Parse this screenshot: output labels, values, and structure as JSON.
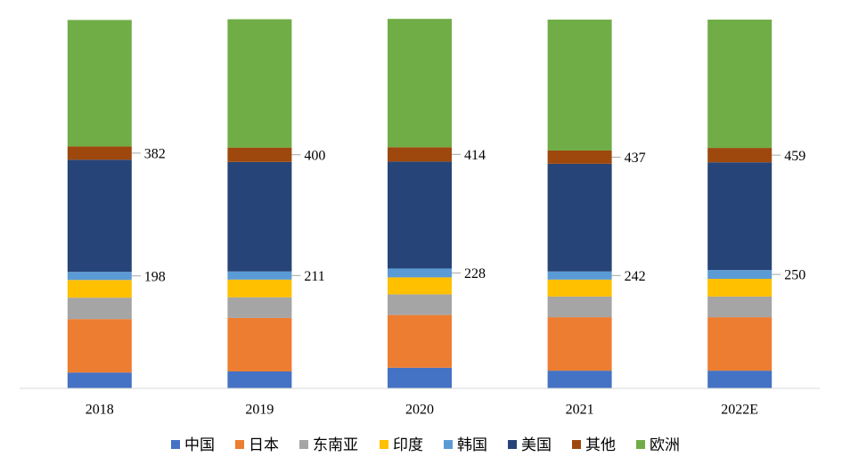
{
  "chart_data": {
    "type": "stacked_bar",
    "categories": [
      "2018",
      "2019",
      "2020",
      "2021",
      "2022E"
    ],
    "ylim": [
      0,
      100
    ],
    "series": [
      {
        "name": "中国",
        "color": "#4472c4",
        "values": [
          4.3,
          4.6,
          5.6,
          4.8,
          4.8
        ]
      },
      {
        "name": "日本",
        "color": "#ed7d31",
        "values": [
          14.5,
          14.5,
          14.3,
          14.5,
          14.5
        ]
      },
      {
        "name": "东南亚",
        "color": "#a5a5a5",
        "values": [
          5.8,
          5.6,
          5.6,
          5.6,
          5.6
        ]
      },
      {
        "name": "印度",
        "color": "#ffc000",
        "values": [
          4.8,
          4.8,
          4.6,
          4.6,
          4.8
        ]
      },
      {
        "name": "韩国",
        "color": "#5b9bd5",
        "values": [
          2.2,
          2.2,
          2.4,
          2.2,
          2.4
        ]
      },
      {
        "name": "美国",
        "color": "#264478",
        "values": [
          30.4,
          29.7,
          29.0,
          29.2,
          29.2
        ]
      },
      {
        "name": "其他",
        "color": "#9e480e",
        "values": [
          3.6,
          3.9,
          3.9,
          3.6,
          3.9
        ]
      },
      {
        "name": "欧洲",
        "color": "#70ad47",
        "values": [
          34.3,
          34.8,
          34.8,
          35.5,
          34.8
        ]
      }
    ],
    "annotations_upper": [
      382,
      400,
      414,
      437,
      459
    ],
    "annotations_lower": [
      198,
      211,
      228,
      242,
      250
    ],
    "legend": "bottom"
  }
}
